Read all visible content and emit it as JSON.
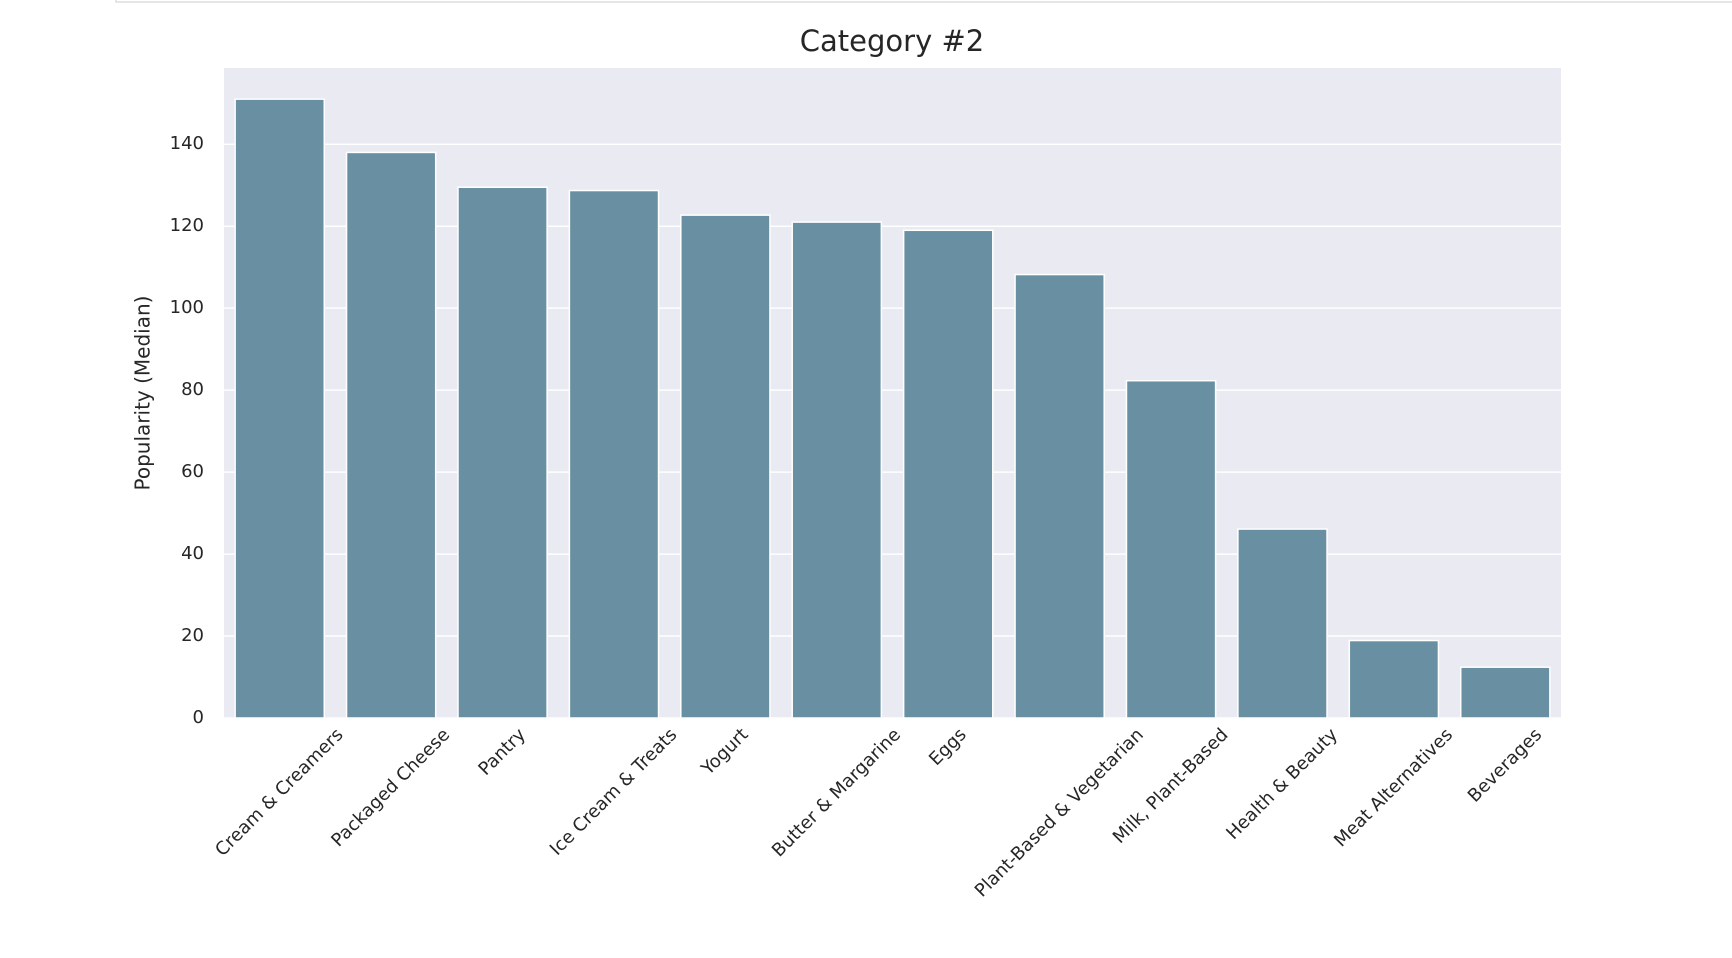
{
  "chart_data": {
    "type": "bar",
    "title": "Category #2",
    "y_label": "Popularity (Median)",
    "categories": [
      "Cream & Creamers",
      "Packaged Cheese",
      "Pantry",
      "Ice Cream & Treats",
      "Yogurt",
      "Butter & Margarine",
      "Eggs",
      "Plant-Based & Vegetarian",
      "Milk, Plant-Based",
      "Health & Beauty",
      "Meat Alternatives",
      "Beverages"
    ],
    "values": [
      151,
      138,
      129.5,
      128.7,
      122.7,
      121,
      119,
      108.2,
      82.3,
      46.1,
      18.9,
      12.4
    ],
    "color": "#6890a2",
    "ylim": [
      0,
      158.6
    ],
    "yticks": [
      0,
      20,
      40,
      60,
      80,
      100,
      120,
      140
    ],
    "grid": true
  }
}
